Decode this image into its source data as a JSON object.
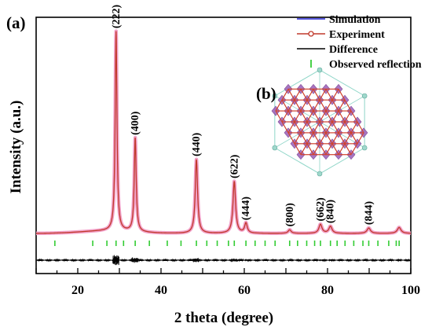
{
  "chart_data": {
    "type": "line",
    "panel_label": "(a)",
    "inset_label": "(b)",
    "xlabel": "2 theta (degree)",
    "ylabel": "Intensity (a.u.)",
    "xlim": [
      10,
      100
    ],
    "xticks": [
      20,
      40,
      60,
      80,
      100
    ],
    "legend_position": "top-right",
    "legend": [
      {
        "label": "Simulation",
        "color": "#1f1fd0",
        "kind": "line"
      },
      {
        "label": "Experiment",
        "color": "#c0392b",
        "kind": "line-dot"
      },
      {
        "label": "Difference",
        "color": "#000000",
        "kind": "line"
      },
      {
        "label": "Observed reflection",
        "color": "#33cc33",
        "kind": "tick"
      }
    ],
    "peaks": [
      {
        "hkl": "(222)",
        "two_theta": 29.2,
        "intensity": 1.0
      },
      {
        "hkl": "(400)",
        "two_theta": 33.8,
        "intensity": 0.47
      },
      {
        "hkl": "(440)",
        "two_theta": 48.5,
        "intensity": 0.37
      },
      {
        "hkl": "(622)",
        "two_theta": 57.6,
        "intensity": 0.26
      },
      {
        "hkl": "(444)",
        "two_theta": 60.4,
        "intensity": 0.05
      },
      {
        "hkl": "(800)",
        "two_theta": 70.9,
        "intensity": 0.018
      },
      {
        "hkl": "(662)",
        "two_theta": 78.3,
        "intensity": 0.045
      },
      {
        "hkl": "(840)",
        "two_theta": 80.7,
        "intensity": 0.035
      },
      {
        "hkl": "(844)",
        "two_theta": 89.9,
        "intensity": 0.027
      },
      {
        "hkl": "",
        "two_theta": 97.2,
        "intensity": 0.03
      }
    ],
    "observed_reflections": [
      14.5,
      23.6,
      27.0,
      29.2,
      31.0,
      33.8,
      37.2,
      41.5,
      44.8,
      48.5,
      51.0,
      53.5,
      56.2,
      57.6,
      60.4,
      62.6,
      65.0,
      67.4,
      70.9,
      72.8,
      75.0,
      76.9,
      78.3,
      80.7,
      82.3,
      84.2,
      86.3,
      88.5,
      89.9,
      92.1,
      94.7,
      96.5,
      97.2
    ]
  }
}
